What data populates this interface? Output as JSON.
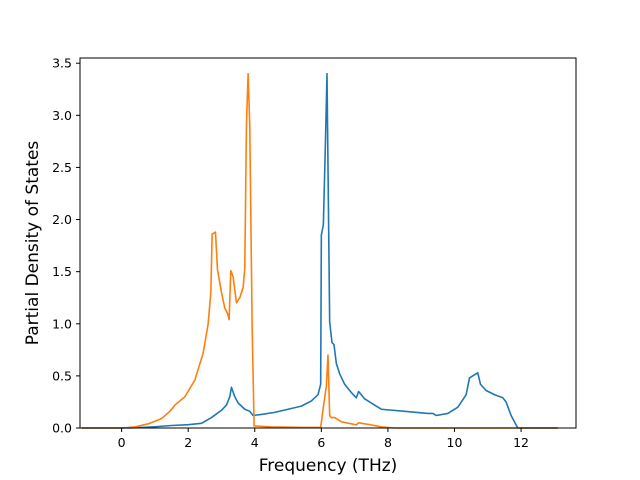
{
  "chart_data": {
    "type": "line",
    "xlabel": "Frequency (THz)",
    "ylabel": "Partial Density of States",
    "xlim": [
      -1.25,
      13.65
    ],
    "ylim": [
      0,
      3.55
    ],
    "xticks": [
      {
        "value": 0,
        "label": "0"
      },
      {
        "value": 2,
        "label": "2"
      },
      {
        "value": 4,
        "label": "4"
      },
      {
        "value": 6,
        "label": "6"
      },
      {
        "value": 8,
        "label": "8"
      },
      {
        "value": 10,
        "label": "10"
      },
      {
        "value": 12,
        "label": "12"
      }
    ],
    "yticks": [
      {
        "value": 0.0,
        "label": "0.0"
      },
      {
        "value": 0.5,
        "label": "0.5"
      },
      {
        "value": 1.0,
        "label": "1.0"
      },
      {
        "value": 1.5,
        "label": "1.5"
      },
      {
        "value": 2.0,
        "label": "2.0"
      },
      {
        "value": 2.5,
        "label": "2.5"
      },
      {
        "value": 3.0,
        "label": "3.0"
      },
      {
        "value": 3.5,
        "label": "3.5"
      }
    ],
    "grid": false,
    "legend": "none",
    "series": [
      {
        "color": "#1f77b4",
        "points": [
          [
            -1.2,
            0.0
          ],
          [
            0.0,
            0.0
          ],
          [
            0.5,
            0.003
          ],
          [
            1.0,
            0.012
          ],
          [
            1.5,
            0.024
          ],
          [
            2.0,
            0.032
          ],
          [
            2.4,
            0.045
          ],
          [
            2.7,
            0.1
          ],
          [
            3.0,
            0.17
          ],
          [
            3.15,
            0.22
          ],
          [
            3.25,
            0.3
          ],
          [
            3.3,
            0.39
          ],
          [
            3.4,
            0.3
          ],
          [
            3.5,
            0.24
          ],
          [
            3.7,
            0.18
          ],
          [
            3.85,
            0.16
          ],
          [
            3.95,
            0.12
          ],
          [
            4.2,
            0.13
          ],
          [
            4.6,
            0.15
          ],
          [
            5.0,
            0.18
          ],
          [
            5.4,
            0.21
          ],
          [
            5.7,
            0.26
          ],
          [
            5.9,
            0.32
          ],
          [
            5.98,
            0.42
          ],
          [
            6.0,
            1.85
          ],
          [
            6.06,
            1.95
          ],
          [
            6.12,
            2.7
          ],
          [
            6.17,
            3.4
          ],
          [
            6.25,
            1.02
          ],
          [
            6.32,
            0.82
          ],
          [
            6.38,
            0.8
          ],
          [
            6.45,
            0.62
          ],
          [
            6.55,
            0.52
          ],
          [
            6.7,
            0.42
          ],
          [
            6.9,
            0.34
          ],
          [
            7.05,
            0.29
          ],
          [
            7.12,
            0.35
          ],
          [
            7.3,
            0.28
          ],
          [
            7.55,
            0.23
          ],
          [
            7.8,
            0.18
          ],
          [
            8.5,
            0.16
          ],
          [
            9.2,
            0.14
          ],
          [
            9.35,
            0.14
          ],
          [
            9.45,
            0.12
          ],
          [
            9.8,
            0.14
          ],
          [
            10.1,
            0.2
          ],
          [
            10.35,
            0.32
          ],
          [
            10.45,
            0.48
          ],
          [
            10.6,
            0.51
          ],
          [
            10.7,
            0.53
          ],
          [
            10.78,
            0.42
          ],
          [
            10.95,
            0.36
          ],
          [
            11.2,
            0.32
          ],
          [
            11.45,
            0.29
          ],
          [
            11.55,
            0.25
          ],
          [
            11.7,
            0.12
          ],
          [
            11.9,
            0.0
          ],
          [
            13.1,
            0.0
          ]
        ]
      },
      {
        "color": "#ff7f0e",
        "points": [
          [
            -1.2,
            0.0
          ],
          [
            0.0,
            0.0
          ],
          [
            0.4,
            0.01
          ],
          [
            0.8,
            0.04
          ],
          [
            1.2,
            0.09
          ],
          [
            1.45,
            0.16
          ],
          [
            1.6,
            0.22
          ],
          [
            1.9,
            0.3
          ],
          [
            2.2,
            0.46
          ],
          [
            2.45,
            0.72
          ],
          [
            2.6,
            1.0
          ],
          [
            2.68,
            1.3
          ],
          [
            2.72,
            1.86
          ],
          [
            2.82,
            1.88
          ],
          [
            2.88,
            1.52
          ],
          [
            3.0,
            1.3
          ],
          [
            3.1,
            1.15
          ],
          [
            3.18,
            1.1
          ],
          [
            3.23,
            1.04
          ],
          [
            3.28,
            1.51
          ],
          [
            3.35,
            1.45
          ],
          [
            3.45,
            1.2
          ],
          [
            3.55,
            1.25
          ],
          [
            3.65,
            1.35
          ],
          [
            3.7,
            1.53
          ],
          [
            3.75,
            2.9
          ],
          [
            3.8,
            3.4
          ],
          [
            3.85,
            2.9
          ],
          [
            3.92,
            1.0
          ],
          [
            3.98,
            0.02
          ],
          [
            4.5,
            0.01
          ],
          [
            5.5,
            0.005
          ],
          [
            5.98,
            0.005
          ],
          [
            6.06,
            0.2
          ],
          [
            6.15,
            0.4
          ],
          [
            6.2,
            0.7
          ],
          [
            6.25,
            0.12
          ],
          [
            6.3,
            0.1
          ],
          [
            6.4,
            0.1
          ],
          [
            6.6,
            0.06
          ],
          [
            6.9,
            0.04
          ],
          [
            7.05,
            0.03
          ],
          [
            7.12,
            0.05
          ],
          [
            7.5,
            0.03
          ],
          [
            7.8,
            0.01
          ],
          [
            8.2,
            0.0
          ],
          [
            13.1,
            0.0
          ]
        ]
      }
    ]
  }
}
